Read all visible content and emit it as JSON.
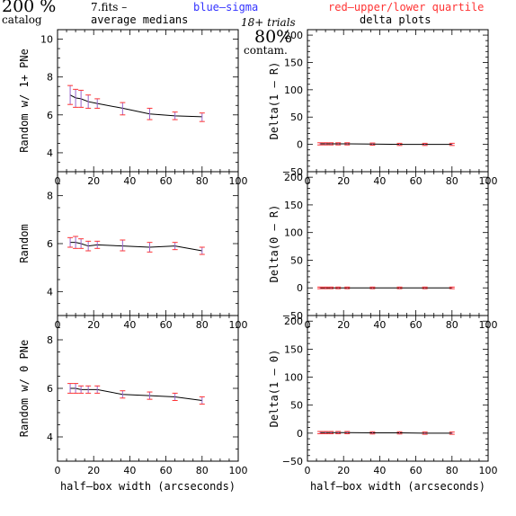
{
  "header": {
    "pct_value": "200 %",
    "catalog": "catalog",
    "file": "7.fits  –",
    "avg": "average medians",
    "blue": "blue–sigma",
    "red": "red–upper/lower quartile",
    "trials": "18+ trials",
    "delta": "delta plots",
    "contam_pct": "80%",
    "contam": "contam."
  },
  "colors": {
    "blue": "#3333ff",
    "red": "#ff3333",
    "error_bar": "#9966cc",
    "line": "#000000"
  },
  "chart_data": [
    {
      "type": "line",
      "ylabel": "Random w/ 1+ PNe",
      "xlim": [
        0,
        100
      ],
      "ylim": [
        3,
        10.5
      ],
      "xticks": [
        "0",
        "20",
        "40",
        "60",
        "80",
        "100"
      ],
      "yticks": [
        "4",
        "6",
        "8",
        "10"
      ],
      "x": [
        7,
        10,
        13,
        17,
        22,
        36,
        51,
        65,
        80
      ],
      "values": [
        7.05,
        6.9,
        6.85,
        6.7,
        6.6,
        6.35,
        6.05,
        5.95,
        5.9
      ],
      "err_low": [
        0.5,
        0.5,
        0.45,
        0.35,
        0.25,
        0.35,
        0.3,
        0.2,
        0.25
      ],
      "err_high": [
        0.5,
        0.45,
        0.45,
        0.35,
        0.25,
        0.3,
        0.3,
        0.2,
        0.2
      ]
    },
    {
      "type": "line",
      "ylabel": "Delta(1 – R)",
      "xlim": [
        0,
        100
      ],
      "ylim": [
        -50,
        210
      ],
      "xticks": [
        "0",
        "20",
        "40",
        "60",
        "80",
        "100"
      ],
      "yticks": [
        "−50",
        "0",
        "50",
        "100",
        "150",
        "200"
      ],
      "x": [
        7,
        10,
        13,
        17,
        22,
        36,
        51,
        65,
        80
      ],
      "values": [
        1,
        1,
        1,
        1,
        1,
        0.5,
        0,
        0,
        0
      ],
      "err_low": [
        2,
        2,
        2,
        2,
        2,
        2,
        2,
        2,
        2
      ],
      "err_high": [
        2,
        2,
        2,
        2,
        2,
        2,
        2,
        2,
        2
      ]
    },
    {
      "type": "line",
      "ylabel": "Random",
      "xlim": [
        0,
        100
      ],
      "ylim": [
        3,
        9
      ],
      "xticks": [
        "0",
        "20",
        "40",
        "60",
        "80",
        "100"
      ],
      "yticks": [
        "4",
        "6",
        "8"
      ],
      "x": [
        7,
        10,
        13,
        17,
        22,
        36,
        51,
        65,
        80
      ],
      "values": [
        6.05,
        6.05,
        6.0,
        5.9,
        5.95,
        5.9,
        5.85,
        5.9,
        5.7
      ],
      "err_low": [
        0.2,
        0.25,
        0.2,
        0.2,
        0.15,
        0.2,
        0.2,
        0.15,
        0.15
      ],
      "err_high": [
        0.2,
        0.25,
        0.2,
        0.2,
        0.15,
        0.25,
        0.2,
        0.15,
        0.15
      ]
    },
    {
      "type": "line",
      "ylabel": "Delta(0 – R)",
      "xlim": [
        0,
        100
      ],
      "ylim": [
        -50,
        210
      ],
      "xticks": [
        "0",
        "20",
        "40",
        "60",
        "80",
        "100"
      ],
      "yticks": [
        "−50",
        "0",
        "50",
        "100",
        "150",
        "200"
      ],
      "x": [
        7,
        10,
        13,
        17,
        22,
        36,
        51,
        65,
        80
      ],
      "values": [
        0,
        0,
        0,
        0,
        0,
        0,
        0,
        0,
        0
      ],
      "err_low": [
        1.5,
        1.5,
        1.5,
        1.5,
        1.5,
        1.5,
        1.5,
        1.5,
        1.5
      ],
      "err_high": [
        1.5,
        1.5,
        1.5,
        1.5,
        1.5,
        1.5,
        1.5,
        1.5,
        1.5
      ]
    },
    {
      "type": "line",
      "ylabel": "Random w/ 0 PNe",
      "xlabel": "half–box width (arcseconds)",
      "xlim": [
        0,
        100
      ],
      "ylim": [
        3,
        9
      ],
      "xticks": [
        "0",
        "20",
        "40",
        "60",
        "80",
        "100"
      ],
      "yticks": [
        "4",
        "6",
        "8"
      ],
      "x": [
        7,
        10,
        13,
        17,
        22,
        36,
        51,
        65,
        80
      ],
      "values": [
        6.0,
        6.0,
        5.95,
        5.95,
        5.95,
        5.75,
        5.7,
        5.65,
        5.5
      ],
      "err_low": [
        0.2,
        0.2,
        0.15,
        0.15,
        0.15,
        0.15,
        0.15,
        0.15,
        0.15
      ],
      "err_high": [
        0.2,
        0.2,
        0.15,
        0.15,
        0.15,
        0.15,
        0.15,
        0.15,
        0.15
      ]
    },
    {
      "type": "line",
      "ylabel": "Delta(1 – 0)",
      "xlabel": "half–box width (arcseconds)",
      "xlim": [
        0,
        100
      ],
      "ylim": [
        -50,
        210
      ],
      "xticks": [
        "0",
        "20",
        "40",
        "60",
        "80",
        "100"
      ],
      "yticks": [
        "−50",
        "0",
        "50",
        "100",
        "150",
        "200"
      ],
      "x": [
        7,
        10,
        13,
        17,
        22,
        36,
        51,
        65,
        80
      ],
      "values": [
        1,
        1,
        1,
        1,
        1,
        0.5,
        0.5,
        0,
        0
      ],
      "err_low": [
        2,
        2,
        2,
        2,
        2,
        2,
        2,
        2,
        2
      ],
      "err_high": [
        2,
        2,
        2,
        2,
        2,
        2,
        2,
        2,
        2
      ]
    }
  ]
}
